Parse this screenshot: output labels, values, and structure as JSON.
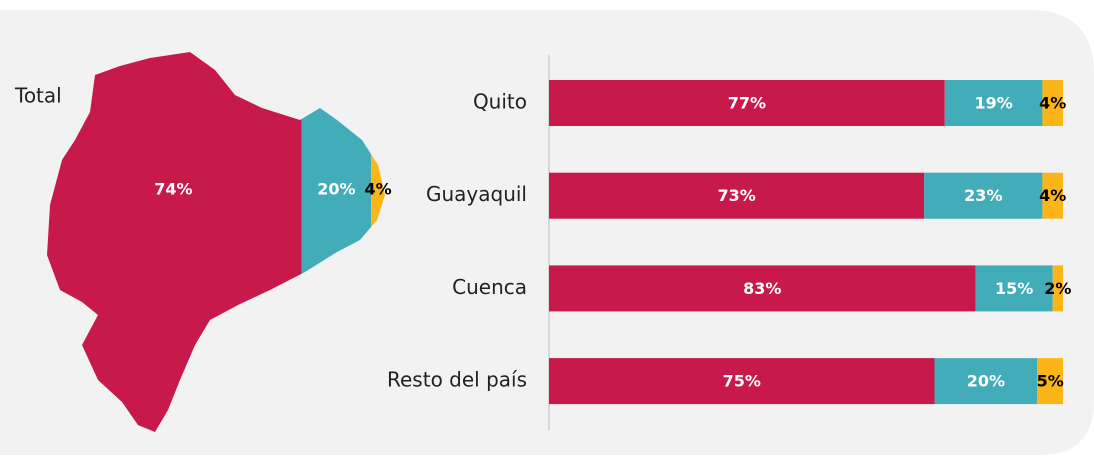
{
  "chart_data": [
    {
      "type": "map",
      "title": "Total",
      "values": [
        74,
        20,
        4
      ],
      "value_labels": [
        "74%",
        "20%",
        "4%"
      ],
      "colors": [
        "#c8194b",
        "#42adb8",
        "#fbb518"
      ],
      "label_colors": [
        "#ffffff",
        "#ffffff",
        "#000000"
      ]
    },
    {
      "type": "stacked_bar",
      "orientation": "horizontal",
      "categories": [
        "Quito",
        "Guayaquil",
        "Cuenca",
        "Resto del país"
      ],
      "xlim": [
        0,
        100
      ],
      "series": [
        {
          "color": "#c8194b",
          "label_color": "#ffffff",
          "values": [
            77,
            73,
            83,
            75
          ],
          "value_labels": [
            "77%",
            "73%",
            "83%",
            "75%"
          ]
        },
        {
          "color": "#42adb8",
          "label_color": "#ffffff",
          "values": [
            19,
            23,
            15,
            20
          ],
          "value_labels": [
            "19%",
            "23%",
            "15%",
            "20%"
          ]
        },
        {
          "color": "#fbb518",
          "label_color": "#000000",
          "values": [
            4,
            4,
            2,
            5
          ],
          "value_labels": [
            "4%",
            "4%",
            "2%",
            "5%"
          ]
        }
      ]
    }
  ]
}
